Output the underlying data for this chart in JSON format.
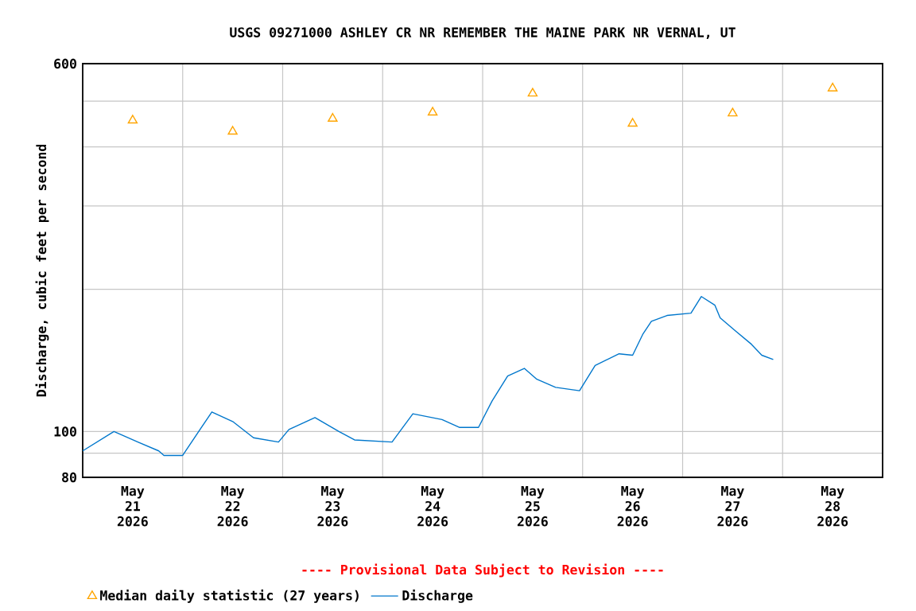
{
  "chart_data": {
    "type": "line",
    "title": "USGS 09271000 ASHLEY CR NR REMEMBER THE MAINE PARK NR VERNAL, UT",
    "ylabel": "Discharge, cubic feet per second",
    "annotations": [
      "---- Provisional Data Subject to Revision ----"
    ],
    "log": "y",
    "grid": true,
    "legend": "bottom",
    "xlim": [
      "2026-05-21T00:00",
      "2026-05-29T00:00"
    ],
    "xticks": [
      {
        "value": "2026-05-21T12:00",
        "label": "May 21 2026"
      },
      {
        "value": "2026-05-22T12:00",
        "label": "May 22 2026"
      },
      {
        "value": "2026-05-23T12:00",
        "label": "May 23 2026"
      },
      {
        "value": "2026-05-24T12:00",
        "label": "May 24 2026"
      },
      {
        "value": "2026-05-25T12:00",
        "label": "May 25 2026"
      },
      {
        "value": "2026-05-26T12:00",
        "label": "May 26 2026"
      },
      {
        "value": "2026-05-27T12:00",
        "label": "May 27 2026"
      },
      {
        "value": "2026-05-28T12:00",
        "label": "May 28 2026"
      },
      {
        "value": "2026-05-22T00:00",
        "label": null
      },
      {
        "value": "2026-05-23T00:00",
        "label": null
      },
      {
        "value": "2026-05-24T00:00",
        "label": null
      },
      {
        "value": "2026-05-25T00:00",
        "label": null
      },
      {
        "value": "2026-05-26T00:00",
        "label": null
      },
      {
        "value": "2026-05-27T00:00",
        "label": null
      },
      {
        "value": "2026-05-28T00:00",
        "label": null
      }
    ],
    "ylim": [
      80,
      600
    ],
    "yticks": [
      80,
      100,
      600,
      {
        "value": 90,
        "label": null
      },
      {
        "value": 200,
        "label": null
      },
      {
        "value": 300,
        "label": null
      },
      {
        "value": 400,
        "label": null
      },
      {
        "value": 500,
        "label": null
      }
    ],
    "series": [
      {
        "name": "Median daily statistic (27 years)",
        "type": "scatter",
        "marker": "triangle",
        "color": "#ffa500",
        "x": [
          "2026-05-21T12:00",
          "2026-05-22T12:00",
          "2026-05-23T12:00",
          "2026-05-24T12:00",
          "2026-05-25T12:00",
          "2026-05-26T12:00",
          "2026-05-27T12:00",
          "2026-05-28T12:00"
        ],
        "values": [
          455,
          431,
          459,
          473,
          519,
          448,
          471,
          532
        ]
      },
      {
        "name": "Discharge",
        "marker": "none",
        "color": "#0077cc",
        "x": [
          "2026-05-21T00:00",
          "2026-05-21T07:30",
          "2026-05-21T13:15",
          "2026-05-21T18:15",
          "2026-05-21T19:30",
          "2026-05-22T00:00",
          "2026-05-22T07:00",
          "2026-05-22T12:00",
          "2026-05-22T17:00",
          "2026-05-22T23:00",
          "2026-05-23T01:30",
          "2026-05-23T07:45",
          "2026-05-23T13:30",
          "2026-05-23T17:15",
          "2026-05-24T02:15",
          "2026-05-24T07:15",
          "2026-05-24T14:15",
          "2026-05-24T18:30",
          "2026-05-24T23:00",
          "2026-05-25T02:15",
          "2026-05-25T06:00",
          "2026-05-25T10:00",
          "2026-05-25T13:00",
          "2026-05-25T17:30",
          "2026-05-25T23:15",
          "2026-05-26T03:00",
          "2026-05-26T08:45",
          "2026-05-26T12:00",
          "2026-05-26T14:30",
          "2026-05-26T16:30",
          "2026-05-26T20:15",
          "2026-05-27T02:00",
          "2026-05-27T04:30",
          "2026-05-27T07:45",
          "2026-05-27T09:00",
          "2026-05-27T12:45",
          "2026-05-27T16:30",
          "2026-05-27T19:00",
          "2026-05-27T21:45"
        ],
        "values": [
          91,
          100,
          95,
          91,
          89,
          89,
          110,
          105,
          97,
          95,
          101,
          107,
          100,
          96,
          95,
          109,
          106,
          102,
          102,
          116,
          131,
          136,
          129,
          124,
          122,
          138,
          146,
          145,
          161,
          171,
          176,
          178,
          193,
          185,
          174,
          163,
          153,
          145,
          142
        ]
      }
    ]
  }
}
